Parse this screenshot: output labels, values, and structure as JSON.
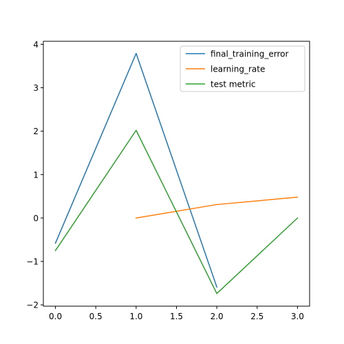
{
  "chart_data": {
    "type": "line",
    "title": "",
    "xlabel": "",
    "ylabel": "",
    "xlim": [
      -0.15,
      3.15
    ],
    "ylim": [
      -2.03,
      4.07
    ],
    "grid": false,
    "legend_position": "upper right",
    "x_ticks": [
      0.0,
      0.5,
      1.0,
      1.5,
      2.0,
      2.5,
      3.0
    ],
    "x_tick_labels": [
      "0.0",
      "0.5",
      "1.0",
      "1.5",
      "2.0",
      "2.5",
      "3.0"
    ],
    "y_ticks": [
      -2,
      -1,
      0,
      1,
      2,
      3,
      4
    ],
    "y_tick_labels": [
      "−2",
      "−1",
      "0",
      "1",
      "2",
      "3",
      "4"
    ],
    "series": [
      {
        "name": "final_training_error",
        "color": "#1f77b4",
        "x": [
          0,
          1,
          2
        ],
        "y": [
          -0.58,
          3.79,
          -1.59
        ]
      },
      {
        "name": "learning_rate",
        "color": "#ff7f0e",
        "x": [
          1,
          2,
          3
        ],
        "y": [
          0.0,
          0.31,
          0.48
        ]
      },
      {
        "name": "test metric",
        "color": "#2ca02c",
        "x": [
          0,
          1,
          2,
          3
        ],
        "y": [
          -0.75,
          2.02,
          -1.74,
          0.0
        ]
      }
    ]
  }
}
